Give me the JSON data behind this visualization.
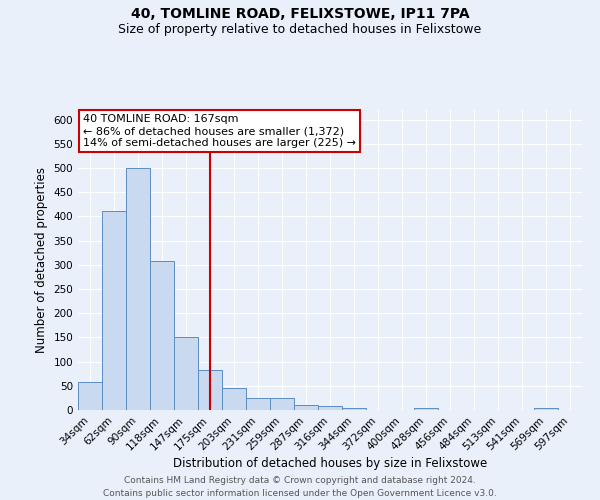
{
  "title1": "40, TOMLINE ROAD, FELIXSTOWE, IP11 7PA",
  "title2": "Size of property relative to detached houses in Felixstowe",
  "xlabel": "Distribution of detached houses by size in Felixstowe",
  "ylabel": "Number of detached properties",
  "categories": [
    "34sqm",
    "62sqm",
    "90sqm",
    "118sqm",
    "147sqm",
    "175sqm",
    "203sqm",
    "231sqm",
    "259sqm",
    "287sqm",
    "316sqm",
    "344sqm",
    "372sqm",
    "400sqm",
    "428sqm",
    "456sqm",
    "484sqm",
    "513sqm",
    "541sqm",
    "569sqm",
    "597sqm"
  ],
  "values": [
    57,
    411,
    500,
    307,
    150,
    82,
    46,
    24,
    24,
    10,
    8,
    5,
    0,
    0,
    5,
    0,
    0,
    0,
    0,
    5,
    0
  ],
  "bar_color": "#c8d9f0",
  "bar_edge_color": "#5b8ec4",
  "vline_x": 5,
  "vline_color": "#cc0000",
  "annotation_line1": "40 TOMLINE ROAD: 167sqm",
  "annotation_line2": "← 86% of detached houses are smaller (1,372)",
  "annotation_line3": "14% of semi-detached houses are larger (225) →",
  "annotation_box_color": "#ffffff",
  "annotation_box_edge": "#cc0000",
  "ylim": [
    0,
    620
  ],
  "yticks": [
    0,
    50,
    100,
    150,
    200,
    250,
    300,
    350,
    400,
    450,
    500,
    550,
    600
  ],
  "footer1": "Contains HM Land Registry data © Crown copyright and database right 2024.",
  "footer2": "Contains public sector information licensed under the Open Government Licence v3.0.",
  "bg_color": "#eaf0fa",
  "grid_color": "#ffffff",
  "title_fontsize": 10,
  "subtitle_fontsize": 9,
  "axis_label_fontsize": 8.5,
  "tick_fontsize": 7.5,
  "footer_fontsize": 6.5,
  "ann_fontsize": 8
}
